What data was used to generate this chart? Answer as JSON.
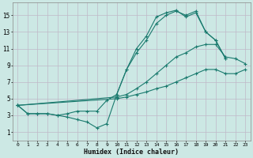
{
  "xlabel": "Humidex (Indice chaleur)",
  "xlim": [
    -0.5,
    23.5
  ],
  "ylim": [
    0,
    16.5
  ],
  "yticks": [
    1,
    3,
    5,
    7,
    9,
    11,
    13,
    15
  ],
  "xticks": [
    0,
    1,
    2,
    3,
    4,
    5,
    6,
    7,
    8,
    9,
    10,
    11,
    12,
    13,
    14,
    15,
    16,
    17,
    18,
    19,
    20,
    21,
    22,
    23
  ],
  "bg_color": "#cce8e4",
  "fig_bg": "#cce8e4",
  "line_color": "#1a7a6e",
  "series": [
    {
      "x": [
        0,
        1,
        2,
        3,
        4,
        5,
        6,
        7,
        8,
        9,
        10,
        11,
        12,
        13,
        14,
        15,
        16,
        17,
        18,
        19,
        20,
        21
      ],
      "y": [
        4.2,
        3.2,
        3.2,
        3.2,
        3.0,
        2.8,
        2.5,
        2.2,
        1.5,
        2.0,
        5.5,
        8.5,
        11.0,
        12.5,
        14.8,
        15.3,
        15.6,
        14.8,
        15.3,
        13.0,
        12.0,
        9.8
      ]
    },
    {
      "x": [
        0,
        1,
        2,
        3,
        4,
        5,
        6,
        7,
        8,
        9,
        10,
        11,
        12,
        13,
        14,
        15,
        16,
        17,
        18,
        19,
        20,
        21
      ],
      "y": [
        4.2,
        3.2,
        3.2,
        3.2,
        3.0,
        3.2,
        3.5,
        3.5,
        3.5,
        4.8,
        5.5,
        8.5,
        10.5,
        12.0,
        14.0,
        15.0,
        15.5,
        15.0,
        15.5,
        13.0,
        12.0,
        9.8
      ]
    },
    {
      "x": [
        0,
        10,
        11,
        12,
        13,
        14,
        15,
        16,
        17,
        18,
        19,
        20,
        21,
        22,
        23
      ],
      "y": [
        4.2,
        5.2,
        5.5,
        6.2,
        7.0,
        8.0,
        9.0,
        10.0,
        10.5,
        11.2,
        11.5,
        11.5,
        10.0,
        9.8,
        9.2
      ]
    },
    {
      "x": [
        0,
        10,
        11,
        12,
        13,
        14,
        15,
        16,
        17,
        18,
        19,
        20,
        21,
        22,
        23
      ],
      "y": [
        4.2,
        5.0,
        5.2,
        5.5,
        5.8,
        6.2,
        6.5,
        7.0,
        7.5,
        8.0,
        8.5,
        8.5,
        8.0,
        8.0,
        8.5
      ]
    }
  ]
}
